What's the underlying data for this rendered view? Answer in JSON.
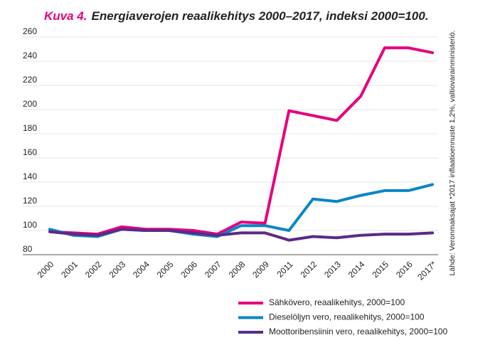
{
  "chart_data": {
    "type": "line",
    "figure_label": "Kuva 4.",
    "title": "Energiaverojen reaalikehitys 2000–2017, indeksi 2000=100.",
    "source": "Lähde: Veronmaksajat *2017 inflaatioennuste 1,2%, valtiovarainministeriö.",
    "categories": [
      "2000",
      "2001",
      "2002",
      "2003",
      "2004",
      "2005",
      "2006",
      "2007",
      "2008",
      "2009",
      "2011",
      "2012",
      "2013",
      "2014",
      "2015",
      "2016",
      "2017*"
    ],
    "series": [
      {
        "name": "Sähkövero, reaalikehitys, 2000=100",
        "color": "#e6007e",
        "values": [
          99,
          98,
          97,
          103,
          101,
          101,
          100,
          97,
          107,
          106,
          199,
          195,
          191,
          211,
          251,
          251,
          247
        ]
      },
      {
        "name": "Dieselöljyn vero, reaalikehitys, 2000=100",
        "color": "#0a86c6",
        "values": [
          101,
          96,
          95,
          101,
          100,
          100,
          97,
          95,
          104,
          104,
          100,
          126,
          124,
          129,
          133,
          133,
          138
        ]
      },
      {
        "name": "Moottoribensiinin vero, reaalikehitys, 2000=100",
        "color": "#5b2a86",
        "values": [
          99,
          97,
          96,
          101,
          100,
          100,
          98,
          96,
          98,
          98,
          92,
          95,
          94,
          96,
          97,
          97,
          98
        ]
      }
    ],
    "ylim": [
      80,
      260
    ],
    "yticks": [
      80,
      100,
      120,
      140,
      160,
      180,
      200,
      220,
      240,
      260
    ],
    "grid": true
  }
}
